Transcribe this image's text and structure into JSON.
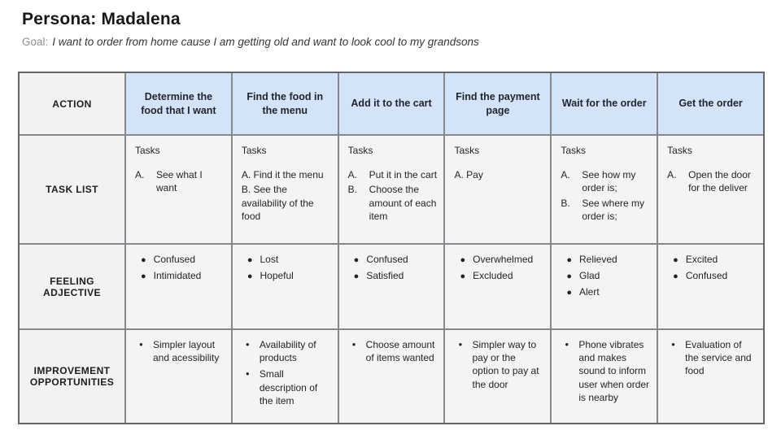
{
  "page": {
    "title": "Persona: Madalena",
    "goal_label": "Goal:",
    "goal_text": "I want to order from home cause I am getting old and want to look cool to my grandsons"
  },
  "colors": {
    "head_fill": "#d3e3f8",
    "label_fill": "#f2f2f2",
    "body_fill": "#f4f4f4",
    "grid_line": "#85888d"
  },
  "table": {
    "row_labels": {
      "action": "ACTION",
      "tasks": "TASK LIST",
      "feeling": "FEELING ADJECTIVE",
      "improvement": "IMPROVEMENT OPPORTUNITIES"
    },
    "columns": [
      {
        "action": "Determine the food that I want",
        "tasks_title": "Tasks",
        "tasks_hanging": true,
        "tasks": [
          {
            "label": "A.",
            "text": "See what I want"
          }
        ],
        "feelings": [
          "Confused",
          "Intimidated"
        ],
        "improvements": [
          "Simpler layout and acessibility"
        ]
      },
      {
        "action": "Find the food in the menu",
        "tasks_title": "Tasks",
        "tasks_hanging": false,
        "tasks": [
          {
            "label": "A.",
            "text": "Find it the menu"
          },
          {
            "label": "B.",
            "text": "See the availability of the food"
          }
        ],
        "feelings": [
          "Lost",
          "Hopeful"
        ],
        "improvements": [
          "Availability of products",
          "Small description of the item"
        ]
      },
      {
        "action": "Add it to the cart",
        "tasks_title": "Tasks",
        "tasks_hanging": true,
        "tasks": [
          {
            "label": "A.",
            "text": "Put it in the cart"
          },
          {
            "label": "B.",
            "text": "Choose the amount of each item"
          }
        ],
        "feelings": [
          "Confused",
          "Satisfied"
        ],
        "improvements": [
          "Choose amount of items wanted"
        ]
      },
      {
        "action": "Find the payment page",
        "tasks_title": "Tasks",
        "tasks_hanging": false,
        "tasks": [
          {
            "label": "A.",
            "text": "Pay"
          }
        ],
        "feelings": [
          "Overwhelmed",
          "Excluded"
        ],
        "improvements": [
          "Simpler way to pay or the option to pay at the door"
        ]
      },
      {
        "action": "Wait for the order",
        "tasks_title": "Tasks",
        "tasks_hanging": true,
        "tasks": [
          {
            "label": "A.",
            "text": "See how my order is;"
          },
          {
            "label": "B.",
            "text": "See where my order is;"
          }
        ],
        "feelings": [
          "Relieved",
          "Glad",
          "Alert"
        ],
        "improvements": [
          "Phone vibrates and makes sound to inform user when order is nearby"
        ]
      },
      {
        "action": "Get the order",
        "tasks_title": "Tasks",
        "tasks_hanging": true,
        "tasks": [
          {
            "label": "A.",
            "text": "Open the door for the deliver"
          }
        ],
        "feelings": [
          "Excited",
          "Confused"
        ],
        "improvements": [
          "Evaluation of the service and food"
        ]
      }
    ]
  }
}
